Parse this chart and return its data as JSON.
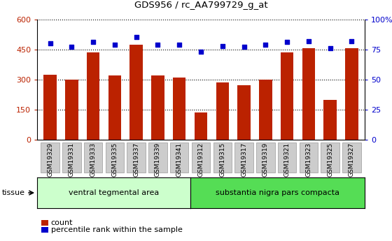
{
  "title": "GDS956 / rc_AA799729_g_at",
  "categories": [
    "GSM19329",
    "GSM19331",
    "GSM19333",
    "GSM19335",
    "GSM19337",
    "GSM19339",
    "GSM19341",
    "GSM19312",
    "GSM19315",
    "GSM19317",
    "GSM19319",
    "GSM19321",
    "GSM19323",
    "GSM19325",
    "GSM19327"
  ],
  "counts": [
    325,
    300,
    435,
    320,
    475,
    320,
    310,
    135,
    285,
    270,
    300,
    435,
    455,
    200,
    455
  ],
  "percentiles": [
    80,
    77,
    81,
    79,
    85,
    79,
    79,
    73,
    78,
    77,
    79,
    81,
    82,
    76,
    82
  ],
  "group1_label": "ventral tegmental area",
  "group2_label": "substantia nigra pars compacta",
  "group1_count": 7,
  "group2_count": 8,
  "bar_color": "#bb2200",
  "dot_color": "#0000cc",
  "group1_bg": "#ccffcc",
  "group2_bg": "#55dd55",
  "tick_bg": "#cccccc",
  "ylim_left": [
    0,
    600
  ],
  "ylim_right": [
    0,
    100
  ],
  "yticks_left": [
    0,
    150,
    300,
    450,
    600
  ],
  "yticks_right": [
    0,
    25,
    50,
    75,
    100
  ],
  "legend_count_label": "count",
  "legend_pct_label": "percentile rank within the sample"
}
